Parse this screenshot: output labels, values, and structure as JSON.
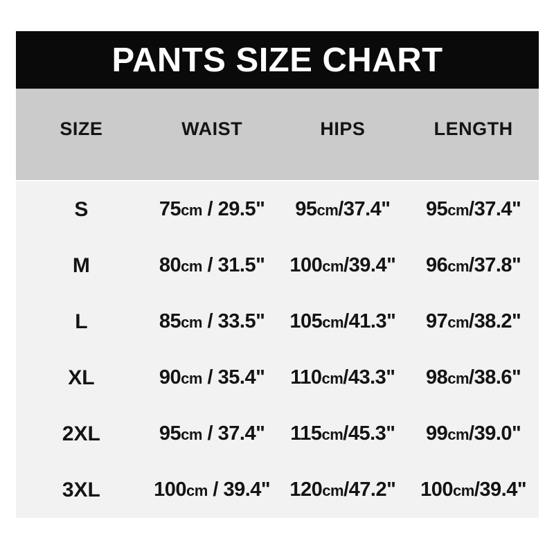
{
  "title": "PANTS SIZE CHART",
  "colors": {
    "page_bg": "#ffffff",
    "header_bg": "#0a0a0a",
    "header_text": "#ffffff",
    "subheader_bg": "#cbcbcb",
    "body_bg": "#f2f2f2",
    "text": "#141414"
  },
  "table": {
    "unit": "cm",
    "columns": [
      "SIZE",
      "WAIST",
      "HIPS",
      "LENGTH"
    ],
    "rows": [
      {
        "size": "S",
        "waist": {
          "cm": "75",
          "sep": " / ",
          "inch": "29.5\""
        },
        "hips": {
          "cm": "95",
          "sep": "/",
          "inch": "37.4\""
        },
        "length": {
          "cm": "95",
          "sep": "/",
          "inch": "37.4\""
        }
      },
      {
        "size": "M",
        "waist": {
          "cm": "80",
          "sep": " / ",
          "inch": "31.5\""
        },
        "hips": {
          "cm": "100",
          "sep": "/",
          "inch": "39.4\""
        },
        "length": {
          "cm": "96",
          "sep": "/",
          "inch": "37.8\""
        }
      },
      {
        "size": "L",
        "waist": {
          "cm": "85",
          "sep": " / ",
          "inch": "33.5\""
        },
        "hips": {
          "cm": "105",
          "sep": "/",
          "inch": "41.3\""
        },
        "length": {
          "cm": "97",
          "sep": "/",
          "inch": "38.2\""
        }
      },
      {
        "size": "XL",
        "waist": {
          "cm": "90",
          "sep": " / ",
          "inch": "35.4\""
        },
        "hips": {
          "cm": "110",
          "sep": "/",
          "inch": "43.3\""
        },
        "length": {
          "cm": "98",
          "sep": "/",
          "inch": "38.6\""
        }
      },
      {
        "size": "2XL",
        "waist": {
          "cm": "95",
          "sep": " / ",
          "inch": "37.4\""
        },
        "hips": {
          "cm": "115",
          "sep": "/",
          "inch": "45.3\""
        },
        "length": {
          "cm": "99",
          "sep": "/",
          "inch": "39.0\""
        }
      },
      {
        "size": "3XL",
        "waist": {
          "cm": "100",
          "sep": " / ",
          "inch": "39.4\""
        },
        "hips": {
          "cm": "120",
          "sep": "/",
          "inch": "47.2\""
        },
        "length": {
          "cm": "100",
          "sep": "/",
          "inch": "39.4\""
        }
      }
    ]
  },
  "chart_data": {
    "type": "table",
    "title": "PANTS SIZE CHART",
    "columns": [
      "SIZE",
      "WAIST",
      "HIPS",
      "LENGTH"
    ],
    "rows": [
      [
        "S",
        "75cm / 29.5\"",
        "95cm/37.4\"",
        "95cm/37.4\""
      ],
      [
        "M",
        "80cm / 31.5\"",
        "100cm/39.4\"",
        "96cm/37.8\""
      ],
      [
        "L",
        "85cm / 33.5\"",
        "105cm/41.3\"",
        "97cm/38.2\""
      ],
      [
        "XL",
        "90cm / 35.4\"",
        "110cm/43.3\"",
        "98cm/38.6\""
      ],
      [
        "2XL",
        "95cm / 37.4\"",
        "115cm/45.3\"",
        "99cm/39.0\""
      ],
      [
        "3XL",
        "100cm / 39.4\"",
        "120cm/47.2\"",
        "100cm/39.4\""
      ]
    ]
  }
}
